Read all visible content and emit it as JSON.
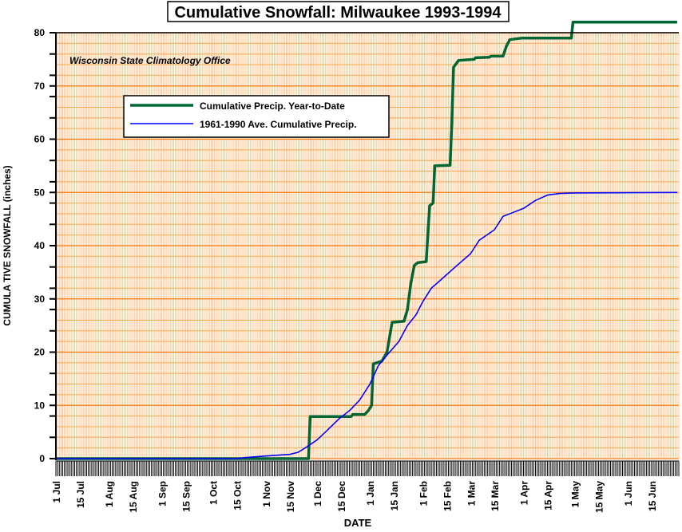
{
  "chart_data": {
    "type": "line",
    "title": "Cumulative Snowfall: Milwaukee 1993-1994",
    "subtitle": "Wisconsin State Climatology Office",
    "xlabel": "DATE",
    "ylabel": "CUMULA TIVE SNOWFALL (inches)",
    "xlim": [
      "1993-07-01",
      "1994-06-30"
    ],
    "ylim": [
      0,
      80
    ],
    "yticks": [
      0,
      10,
      20,
      30,
      40,
      50,
      60,
      70,
      80
    ],
    "xticks": [
      {
        "date": "1993-07-01",
        "label": "1 Jul"
      },
      {
        "date": "1993-07-15",
        "label": "15 Jul"
      },
      {
        "date": "1993-08-01",
        "label": "1 Aug"
      },
      {
        "date": "1993-08-15",
        "label": "15 Aug"
      },
      {
        "date": "1993-09-01",
        "label": "1 Sep"
      },
      {
        "date": "1993-09-15",
        "label": "15 Sep"
      },
      {
        "date": "1993-10-01",
        "label": "1 Oct"
      },
      {
        "date": "1993-10-15",
        "label": "15 Oct"
      },
      {
        "date": "1993-11-01",
        "label": "1 Nov"
      },
      {
        "date": "1993-11-15",
        "label": "15 Nov"
      },
      {
        "date": "1993-12-01",
        "label": "1 Dec"
      },
      {
        "date": "1993-12-15",
        "label": "15 Dec"
      },
      {
        "date": "1994-01-01",
        "label": "1 Jan"
      },
      {
        "date": "1994-01-15",
        "label": "15 Jan"
      },
      {
        "date": "1994-02-01",
        "label": "1 Feb"
      },
      {
        "date": "1994-02-15",
        "label": "15 Feb"
      },
      {
        "date": "1994-03-01",
        "label": "1 Mar"
      },
      {
        "date": "1994-03-15",
        "label": "15 Mar"
      },
      {
        "date": "1994-04-01",
        "label": "1 Apr"
      },
      {
        "date": "1994-04-15",
        "label": "15 Apr"
      },
      {
        "date": "1994-05-01",
        "label": "1 May"
      },
      {
        "date": "1994-05-15",
        "label": "15 May"
      },
      {
        "date": "1994-06-01",
        "label": "1 Jun"
      },
      {
        "date": "1994-06-15",
        "label": "15 Jun"
      }
    ],
    "grid": true,
    "legend": "upper-left",
    "series": [
      {
        "name": "Cumulative Precip. Year-to-Date",
        "color": "#006633",
        "step": true,
        "points": [
          [
            "1993-07-01",
            0
          ],
          [
            "1993-11-26",
            0
          ],
          [
            "1993-11-27",
            7.9
          ],
          [
            "1993-12-21",
            7.9
          ],
          [
            "1993-12-22",
            8.3
          ],
          [
            "1993-12-29",
            8.3
          ],
          [
            "1993-12-31",
            9
          ],
          [
            "1994-01-02",
            10
          ],
          [
            "1994-01-03",
            17.8
          ],
          [
            "1994-01-08",
            18.3
          ],
          [
            "1994-01-11",
            20
          ],
          [
            "1994-01-14",
            25.6
          ],
          [
            "1994-01-21",
            25.8
          ],
          [
            "1994-01-23",
            28
          ],
          [
            "1994-01-25",
            33
          ],
          [
            "1994-01-27",
            36.3
          ],
          [
            "1994-01-29",
            36.8
          ],
          [
            "1994-02-03",
            37
          ],
          [
            "1994-02-05",
            47.5
          ],
          [
            "1994-02-07",
            48
          ],
          [
            "1994-02-08",
            55
          ],
          [
            "1994-02-17",
            55.1
          ],
          [
            "1994-02-18",
            63
          ],
          [
            "1994-02-19",
            73.5
          ],
          [
            "1994-02-22",
            74.8
          ],
          [
            "1994-03-03",
            75
          ],
          [
            "1994-03-04",
            75.3
          ],
          [
            "1994-03-12",
            75.4
          ],
          [
            "1994-03-13",
            75.6
          ],
          [
            "1994-03-20",
            75.6
          ],
          [
            "1994-03-22",
            77.5
          ],
          [
            "1994-03-24",
            78.7
          ],
          [
            "1994-03-31",
            79
          ],
          [
            "1994-04-29",
            79
          ],
          [
            "1994-04-30",
            82
          ],
          [
            "1994-06-30",
            82
          ]
        ]
      },
      {
        "name": "1961-1990 Ave. Cumulative Precip.",
        "color": "#0000ff",
        "step": false,
        "points": [
          [
            "1993-07-01",
            0
          ],
          [
            "1993-10-15",
            0
          ],
          [
            "1993-10-20",
            0.2
          ],
          [
            "1993-11-01",
            0.5
          ],
          [
            "1993-11-15",
            0.8
          ],
          [
            "1993-11-20",
            1.2
          ],
          [
            "1993-11-25",
            2.2
          ],
          [
            "1993-12-01",
            3.5
          ],
          [
            "1993-12-06",
            5
          ],
          [
            "1993-12-14",
            7.5
          ],
          [
            "1993-12-20",
            9
          ],
          [
            "1993-12-26",
            11
          ],
          [
            "1994-01-01",
            14
          ],
          [
            "1994-01-06",
            17.5
          ],
          [
            "1994-01-12",
            19.8
          ],
          [
            "1994-01-18",
            22
          ],
          [
            "1994-01-23",
            25
          ],
          [
            "1994-01-28",
            27
          ],
          [
            "1994-02-01",
            29.5
          ],
          [
            "1994-02-06",
            32
          ],
          [
            "1994-02-13",
            34
          ],
          [
            "1994-02-20",
            36
          ],
          [
            "1994-03-01",
            38.5
          ],
          [
            "1994-03-06",
            41
          ],
          [
            "1994-03-15",
            43
          ],
          [
            "1994-03-20",
            45.5
          ],
          [
            "1994-04-01",
            47
          ],
          [
            "1994-04-08",
            48.5
          ],
          [
            "1994-04-15",
            49.5
          ],
          [
            "1994-04-22",
            49.8
          ],
          [
            "1994-05-01",
            49.9
          ],
          [
            "1994-06-30",
            50
          ]
        ]
      }
    ]
  }
}
